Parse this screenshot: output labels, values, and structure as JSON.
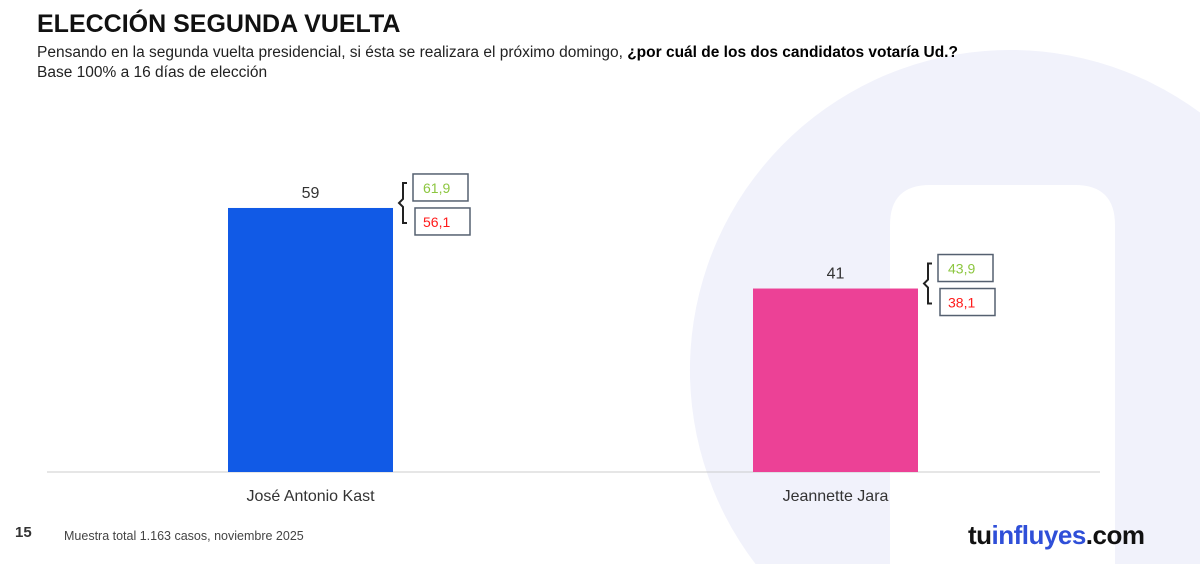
{
  "header": {
    "title": "ELECCIÓN SEGUNDA VUELTA",
    "subtitle_plain": "Pensando en la segunda vuelta presidencial, si ésta se realizara el próximo domingo, ",
    "subtitle_bold": "¿por cuál de los dos candidatos votaría Ud.?",
    "base": "Base 100% a 16 días de elección"
  },
  "footer": {
    "page": "15",
    "note": "Muestra total 1.163 casos, noviembre 2025",
    "logo_a": "tu",
    "logo_b": "influyes",
    "logo_c": ".com"
  },
  "chart_data": {
    "type": "bar",
    "categories": [
      "José Antonio Kast",
      "Jeannette Jara"
    ],
    "values": [
      59,
      41
    ],
    "upper": [
      "61,9",
      "43,9"
    ],
    "lower": [
      "56,1",
      "38,1"
    ],
    "colors": [
      "#115ae6",
      "#ec4196"
    ],
    "upper_color": "#8cc63f",
    "lower_color": "#ff1a1a",
    "ylim": [
      0,
      100
    ],
    "grid": false
  }
}
